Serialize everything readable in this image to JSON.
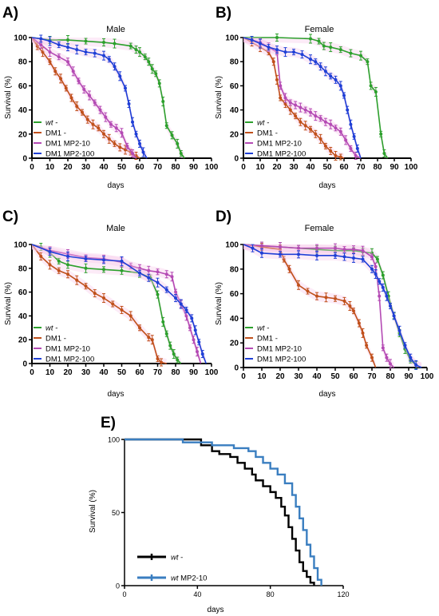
{
  "figure": {
    "legend_labels": [
      "wt -",
      "DM1 -",
      "DM1 MP2-10",
      "DM1 MP2-100"
    ]
  },
  "chart_data": [
    {
      "panel": "A)",
      "type": "line",
      "title": "Male",
      "xlabel": "days",
      "ylabel": "Survival (%)",
      "xlim": [
        0,
        100
      ],
      "ylim": [
        0,
        100
      ],
      "x_ticks": [
        0,
        10,
        20,
        30,
        40,
        50,
        60,
        70,
        80,
        90,
        100
      ],
      "y_ticks": [
        0,
        20,
        40,
        60,
        80,
        100
      ],
      "legend_position": "bottom-left",
      "series": [
        {
          "name": "wt -",
          "color": "#2ca02c",
          "error_bars": true,
          "x": [
            0,
            10,
            20,
            30,
            40,
            46,
            55,
            58,
            60,
            63,
            65,
            67,
            69,
            71,
            73,
            75,
            78,
            81,
            83,
            85
          ],
          "y": [
            100,
            98,
            98,
            97,
            96,
            95,
            93,
            90,
            88,
            84,
            80,
            74,
            70,
            62,
            47,
            27,
            19,
            12,
            4,
            0
          ]
        },
        {
          "name": "DM1 -",
          "color": "#c0501b",
          "error_bars": true,
          "x": [
            0,
            3,
            6,
            10,
            13,
            16,
            19,
            22,
            25,
            28,
            31,
            34,
            37,
            40,
            43,
            46,
            49,
            52,
            55,
            58,
            60
          ],
          "y": [
            100,
            93,
            88,
            80,
            72,
            66,
            58,
            50,
            43,
            38,
            32,
            28,
            25,
            20,
            16,
            12,
            9,
            7,
            5,
            2,
            0
          ]
        },
        {
          "name": "DM1 MP2-10",
          "color": "#b44ab4",
          "error_bars": true,
          "x": [
            0,
            5,
            10,
            15,
            20,
            23,
            26,
            29,
            32,
            35,
            38,
            41,
            44,
            47,
            50,
            53,
            56,
            58
          ],
          "y": [
            100,
            94,
            88,
            84,
            80,
            72,
            64,
            57,
            52,
            46,
            40,
            34,
            28,
            25,
            21,
            10,
            4,
            0
          ]
        },
        {
          "name": "DM1 MP2-100",
          "color": "#1f3fd6",
          "error_bars": true,
          "x": [
            0,
            5,
            10,
            15,
            20,
            25,
            30,
            35,
            40,
            43,
            46,
            49,
            52,
            54,
            56,
            58,
            60,
            62,
            64
          ],
          "y": [
            100,
            99,
            97,
            94,
            92,
            90,
            88,
            87,
            85,
            82,
            76,
            68,
            58,
            45,
            30,
            20,
            12,
            5,
            0
          ]
        }
      ]
    },
    {
      "panel": "B)",
      "type": "line",
      "title": "Female",
      "xlabel": "days",
      "ylabel": "Survival (%)",
      "xlim": [
        0,
        100
      ],
      "ylim": [
        0,
        100
      ],
      "x_ticks": [
        0,
        10,
        20,
        30,
        40,
        50,
        60,
        70,
        80,
        90,
        100
      ],
      "y_ticks": [
        0,
        20,
        40,
        60,
        80,
        100
      ],
      "legend_position": "bottom-left",
      "series": [
        {
          "name": "wt -",
          "color": "#2ca02c",
          "error_bars": true,
          "x": [
            0,
            20,
            40,
            45,
            48,
            52,
            58,
            64,
            70,
            74,
            76,
            79,
            82,
            84,
            86
          ],
          "y": [
            100,
            100,
            99,
            97,
            93,
            92,
            90,
            87,
            85,
            80,
            60,
            55,
            20,
            4,
            0
          ]
        },
        {
          "name": "DM1 -",
          "color": "#c0501b",
          "error_bars": true,
          "x": [
            0,
            5,
            10,
            15,
            18,
            20,
            22,
            25,
            28,
            31,
            34,
            37,
            40,
            43,
            46,
            49,
            52,
            55,
            58,
            60
          ],
          "y": [
            100,
            96,
            92,
            88,
            80,
            65,
            50,
            45,
            40,
            35,
            30,
            27,
            24,
            20,
            16,
            10,
            6,
            2,
            1,
            0
          ]
        },
        {
          "name": "DM1 MP2-10",
          "color": "#b44ab4",
          "error_bars": true,
          "x": [
            0,
            10,
            15,
            20,
            22,
            25,
            28,
            31,
            34,
            37,
            40,
            43,
            46,
            49,
            52,
            55,
            58,
            61,
            64,
            67,
            70
          ],
          "y": [
            100,
            96,
            92,
            88,
            60,
            50,
            46,
            44,
            42,
            40,
            38,
            35,
            33,
            30,
            28,
            25,
            22,
            15,
            8,
            2,
            0
          ]
        },
        {
          "name": "DM1 MP2-100",
          "color": "#1f3fd6",
          "error_bars": true,
          "x": [
            0,
            5,
            10,
            15,
            20,
            25,
            30,
            35,
            40,
            43,
            46,
            49,
            52,
            55,
            58,
            60,
            62,
            64,
            66,
            68,
            70
          ],
          "y": [
            100,
            98,
            95,
            92,
            90,
            88,
            88,
            86,
            82,
            80,
            76,
            72,
            68,
            65,
            60,
            52,
            40,
            28,
            18,
            8,
            0
          ]
        }
      ]
    },
    {
      "panel": "C)",
      "type": "line",
      "title": "Male",
      "xlabel": "days",
      "ylabel": "Survival (%)",
      "xlim": [
        0,
        100
      ],
      "ylim": [
        0,
        100
      ],
      "x_ticks": [
        0,
        10,
        20,
        30,
        40,
        50,
        60,
        70,
        80,
        90,
        100
      ],
      "y_ticks": [
        0,
        20,
        40,
        60,
        80,
        100
      ],
      "legend_position": "bottom-left",
      "series": [
        {
          "name": "wt -",
          "color": "#2ca02c",
          "error_bars": true,
          "x": [
            0,
            5,
            10,
            15,
            20,
            30,
            40,
            50,
            60,
            66,
            70,
            73,
            75,
            77,
            79,
            81,
            83
          ],
          "y": [
            100,
            98,
            93,
            86,
            83,
            80,
            79,
            78,
            76,
            72,
            58,
            35,
            25,
            15,
            8,
            3,
            0
          ]
        },
        {
          "name": "DM1 -",
          "color": "#c0501b",
          "error_bars": true,
          "x": [
            0,
            5,
            10,
            15,
            20,
            25,
            30,
            35,
            40,
            45,
            50,
            55,
            60,
            65,
            67,
            70,
            72,
            75
          ],
          "y": [
            100,
            90,
            83,
            78,
            75,
            70,
            65,
            59,
            55,
            50,
            45,
            40,
            30,
            22,
            20,
            4,
            1,
            0
          ]
        },
        {
          "name": "DM1 MP2-10",
          "color": "#b44ab4",
          "error_bars": true,
          "x": [
            0,
            10,
            20,
            30,
            40,
            50,
            55,
            60,
            65,
            70,
            75,
            78,
            80,
            83,
            86,
            88,
            90,
            92,
            94
          ],
          "y": [
            100,
            95,
            92,
            89,
            88,
            85,
            82,
            80,
            78,
            77,
            75,
            73,
            60,
            50,
            40,
            30,
            20,
            10,
            0
          ]
        },
        {
          "name": "DM1 MP2-100",
          "color": "#1f3fd6",
          "error_bars": true,
          "x": [
            0,
            10,
            20,
            30,
            40,
            50,
            60,
            65,
            70,
            75,
            80,
            83,
            86,
            89,
            91,
            93,
            95,
            97
          ],
          "y": [
            100,
            94,
            90,
            88,
            87,
            86,
            76,
            72,
            68,
            62,
            55,
            50,
            45,
            38,
            28,
            18,
            8,
            0
          ]
        }
      ]
    },
    {
      "panel": "D)",
      "type": "line",
      "title": "Female",
      "xlabel": "days",
      "ylabel": "Survival (%)",
      "xlim": [
        0,
        100
      ],
      "ylim": [
        0,
        100
      ],
      "x_ticks": [
        0,
        10,
        20,
        30,
        40,
        50,
        60,
        70,
        80,
        90,
        100
      ],
      "y_ticks": [
        0,
        20,
        40,
        60,
        80,
        100
      ],
      "legend_position": "bottom-left",
      "series": [
        {
          "name": "wt -",
          "color": "#2ca02c",
          "error_bars": true,
          "x": [
            0,
            10,
            20,
            30,
            40,
            50,
            60,
            65,
            70,
            73,
            76,
            79,
            82,
            85,
            88,
            91,
            94,
            97
          ],
          "y": [
            100,
            99,
            98,
            97,
            96,
            95,
            95,
            94,
            93,
            88,
            75,
            58,
            42,
            28,
            15,
            6,
            2,
            0
          ]
        },
        {
          "name": "DM1 -",
          "color": "#c0501b",
          "error_bars": true,
          "x": [
            0,
            10,
            20,
            22,
            25,
            30,
            35,
            40,
            45,
            50,
            55,
            58,
            60,
            63,
            65,
            67,
            70,
            72
          ],
          "y": [
            100,
            98,
            96,
            88,
            80,
            67,
            62,
            58,
            57,
            56,
            54,
            50,
            46,
            36,
            28,
            18,
            8,
            0
          ]
        },
        {
          "name": "DM1 MP2-10",
          "color": "#b44ab4",
          "error_bars": true,
          "x": [
            0,
            10,
            20,
            30,
            40,
            50,
            55,
            60,
            65,
            70,
            72,
            74,
            76,
            78,
            80,
            82
          ],
          "y": [
            100,
            99,
            98,
            97,
            97,
            97,
            96,
            96,
            95,
            90,
            82,
            58,
            16,
            8,
            3,
            0
          ]
        },
        {
          "name": "DM1 MP2-100",
          "color": "#1f3fd6",
          "error_bars": true,
          "x": [
            0,
            5,
            10,
            20,
            30,
            40,
            50,
            55,
            60,
            65,
            70,
            72,
            74,
            76,
            78,
            80,
            82,
            85,
            88,
            91,
            94,
            97
          ],
          "y": [
            100,
            97,
            93,
            92,
            92,
            91,
            91,
            90,
            89,
            88,
            80,
            76,
            70,
            65,
            58,
            50,
            42,
            30,
            18,
            8,
            2,
            0
          ]
        }
      ]
    },
    {
      "panel": "E)",
      "type": "line",
      "title": "",
      "xlabel": "days",
      "ylabel": "Survival (%)",
      "xlim": [
        0,
        120
      ],
      "ylim": [
        0,
        100
      ],
      "x_ticks": [
        0,
        40,
        80,
        120
      ],
      "y_ticks": [
        0,
        50,
        100
      ],
      "legend_position": "bottom-left",
      "series": [
        {
          "name": "wt -",
          "color": "#000000",
          "step": true,
          "label_parts": [
            "wt",
            " -"
          ],
          "x": [
            0,
            36,
            42,
            48,
            52,
            58,
            62,
            66,
            70,
            72,
            76,
            80,
            83,
            86,
            88,
            90,
            92,
            94,
            96,
            98,
            100,
            102,
            104
          ],
          "y": [
            100,
            100,
            96,
            92,
            90,
            88,
            84,
            80,
            76,
            72,
            68,
            64,
            60,
            54,
            48,
            40,
            32,
            24,
            16,
            10,
            6,
            2,
            0
          ]
        },
        {
          "name": "wt MP2-10",
          "color": "#3a7ec0",
          "step": true,
          "label_parts": [
            "wt",
            " MP2-10"
          ],
          "x": [
            0,
            22,
            32,
            48,
            60,
            68,
            72,
            76,
            80,
            84,
            88,
            92,
            94,
            96,
            98,
            100,
            102,
            104,
            106,
            108
          ],
          "y": [
            100,
            100,
            98,
            96,
            94,
            92,
            88,
            84,
            80,
            76,
            70,
            62,
            54,
            46,
            38,
            28,
            20,
            12,
            4,
            0
          ]
        }
      ]
    }
  ]
}
